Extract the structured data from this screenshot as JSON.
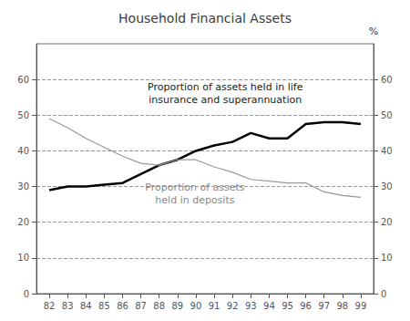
{
  "chart_data": {
    "type": "line",
    "title": "Household Financial Assets",
    "x": [
      82,
      83,
      84,
      85,
      86,
      87,
      88,
      89,
      90,
      91,
      92,
      93,
      94,
      95,
      96,
      97,
      98,
      99
    ],
    "series": [
      {
        "color": "#000000",
        "values": [
          29.0,
          30.0,
          30.0,
          30.5,
          31.0,
          33.5,
          36.0,
          37.5,
          40.0,
          41.5,
          42.5,
          45.0,
          43.5,
          43.5,
          47.5,
          48.0,
          48.0,
          47.5
        ]
      },
      {
        "color": "#999999",
        "values": [
          49.0,
          46.5,
          43.5,
          41.0,
          38.5,
          36.5,
          36.0,
          37.5,
          37.5,
          35.5,
          34.0,
          32.0,
          31.5,
          31.0,
          31.0,
          28.5,
          27.5,
          27.0
        ]
      }
    ],
    "xlim": [
      81.3,
      99.7
    ],
    "xticks": [
      82,
      83,
      84,
      85,
      86,
      87,
      88,
      89,
      90,
      91,
      92,
      93,
      94,
      95,
      96,
      97,
      98,
      99
    ],
    "ylim": [
      0,
      70
    ],
    "yticks": [
      0,
      10,
      20,
      30,
      40,
      50,
      60
    ],
    "y2lim": [
      0,
      70
    ],
    "y2ticks": [
      0,
      10,
      20,
      30,
      40,
      50,
      60
    ],
    "y2label": "%",
    "grid": "y",
    "annotations": [
      {
        "text": "Proportion of assets held in life\ninsurance and superannuation",
        "color": "#222222"
      },
      {
        "text": "Proportion of assets\nheld in deposits",
        "color": "#888888"
      }
    ]
  }
}
